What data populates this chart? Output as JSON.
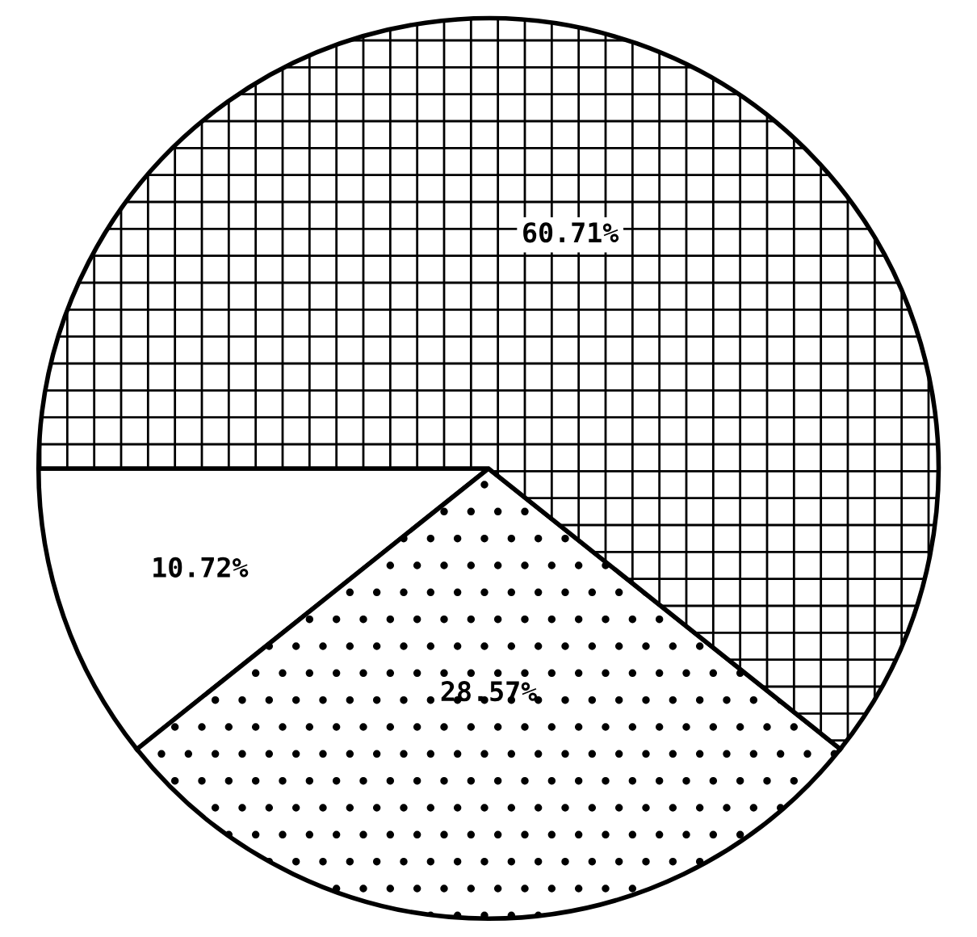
{
  "chart_data": {
    "type": "pie",
    "categories": [
      null,
      null,
      null
    ],
    "values": [
      10.72,
      28.57,
      60.71
    ],
    "colors": [
      "#ffffff",
      "#ffffff",
      "#ffffff"
    ],
    "value_labels": [
      "10.72%",
      "28.57%",
      "60.71%"
    ]
  }
}
